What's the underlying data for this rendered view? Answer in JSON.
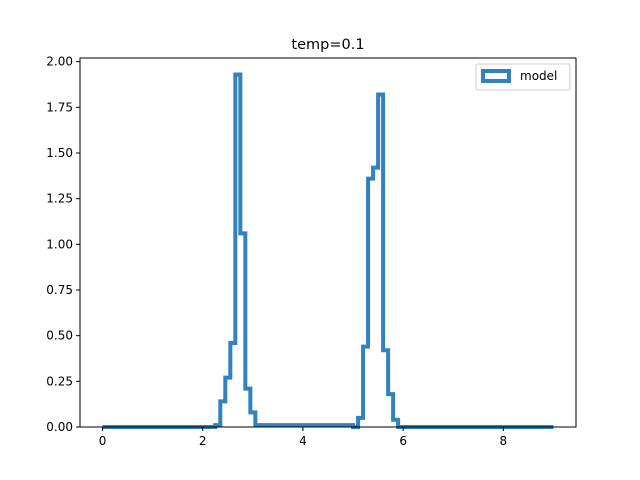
{
  "chart_data": {
    "type": "line",
    "drawstyle": "steps",
    "title": "temp=0.1",
    "xlabel": "",
    "ylabel": "",
    "xlim": [
      -0.45,
      9.45
    ],
    "ylim": [
      0,
      2.02
    ],
    "xticks": [
      0,
      2,
      4,
      6,
      8
    ],
    "xtick_labels": [
      "0",
      "2",
      "4",
      "6",
      "8"
    ],
    "yticks": [
      0,
      0.25,
      0.5,
      0.75,
      1.0,
      1.25,
      1.5,
      1.75,
      2.0
    ],
    "ytick_labels": [
      "0.00",
      "0.25",
      "0.50",
      "0.75",
      "1.00",
      "1.25",
      "1.50",
      "1.75",
      "2.00"
    ],
    "grid": false,
    "legend_position": "top-right",
    "colors": {
      "series": "#3182bd",
      "axis": "#000000",
      "legend_border": "#cccccc"
    },
    "series": [
      {
        "name": "model",
        "x": [
          0.0,
          2.25,
          2.35,
          2.45,
          2.55,
          2.65,
          2.75,
          2.85,
          2.95,
          3.05,
          5.0,
          5.1,
          5.2,
          5.3,
          5.4,
          5.5,
          5.6,
          5.7,
          5.8,
          5.9,
          9.0
        ],
        "y": [
          0.0,
          0.01,
          0.14,
          0.27,
          0.46,
          1.93,
          1.06,
          0.21,
          0.08,
          0.01,
          0.0,
          0.05,
          0.44,
          1.36,
          1.42,
          1.82,
          0.42,
          0.18,
          0.04,
          0.0,
          0.0
        ]
      }
    ]
  }
}
